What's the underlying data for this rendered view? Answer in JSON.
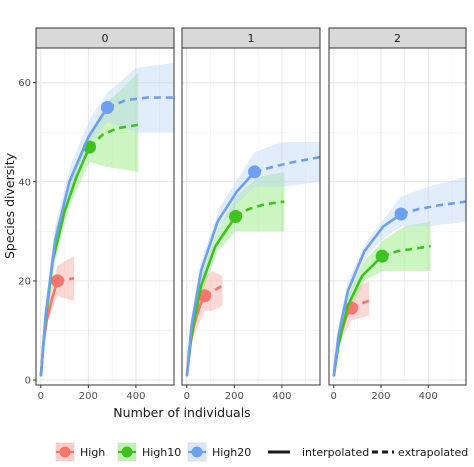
{
  "chart_data": {
    "type": "line",
    "facets": [
      "0",
      "1",
      "2"
    ],
    "xlabel": "Number of individuals",
    "ylabel": "Species diversity",
    "xlim": [
      -20,
      560
    ],
    "ylim": [
      -1,
      67
    ],
    "x_ticks": [
      0,
      200,
      400
    ],
    "y_ticks": [
      0,
      20,
      40,
      60
    ],
    "grid": true,
    "legend_position": "bottom",
    "line_types": {
      "interpolated": "interpolated",
      "extrapolated": "extrapolated"
    },
    "series": [
      {
        "name": "High",
        "color": "#f8766d",
        "band_color": "#f8a8a2"
      },
      {
        "name": "High10",
        "color": "#3ec31e",
        "band_color": "#8ee878"
      },
      {
        "name": "High20",
        "color": "#6f9ff0",
        "band_color": "#bcd8f7"
      }
    ],
    "panels": [
      {
        "facet": "0",
        "curves": [
          {
            "series": "High",
            "observed": [
              70,
              20
            ],
            "interpolated": [
              [
                1,
                1
              ],
              [
                10,
                7
              ],
              [
                25,
                12
              ],
              [
                45,
                16
              ],
              [
                70,
                20
              ]
            ],
            "extrapolated": [
              [
                70,
                20
              ],
              [
                100,
                20.3
              ],
              [
                140,
                20.5
              ]
            ],
            "band": [
              [
                10,
                6,
                8
              ],
              [
                30,
                12,
                16
              ],
              [
                70,
                17,
                23
              ],
              [
                100,
                16.5,
                24
              ],
              [
                140,
                16,
                25
              ]
            ]
          },
          {
            "series": "High10",
            "observed": [
              205,
              47
            ],
            "interpolated": [
              [
                1,
                1
              ],
              [
                20,
                12
              ],
              [
                50,
                24
              ],
              [
                100,
                34
              ],
              [
                150,
                41
              ],
              [
                205,
                47
              ]
            ],
            "extrapolated": [
              [
                205,
                47
              ],
              [
                260,
                49.5
              ],
              [
                320,
                50.8
              ],
              [
                410,
                51.5
              ]
            ],
            "band": [
              [
                20,
                10,
                14
              ],
              [
                60,
                24,
                30
              ],
              [
                120,
                35,
                40
              ],
              [
                205,
                44,
                50
              ],
              [
                280,
                43,
                56
              ],
              [
                410,
                42,
                62
              ]
            ]
          },
          {
            "series": "High20",
            "observed": [
              280,
              55
            ],
            "interpolated": [
              [
                1,
                1
              ],
              [
                20,
                13
              ],
              [
                60,
                28
              ],
              [
                120,
                40
              ],
              [
                200,
                49
              ],
              [
                280,
                55
              ]
            ],
            "extrapolated": [
              [
                280,
                55
              ],
              [
                360,
                56.5
              ],
              [
                450,
                57
              ],
              [
                560,
                57
              ]
            ],
            "band": [
              [
                20,
                11,
                15
              ],
              [
                60,
                26,
                31
              ],
              [
                130,
                39,
                44
              ],
              [
                210,
                48,
                53
              ],
              [
                280,
                52,
                58
              ],
              [
                400,
                50,
                63
              ],
              [
                560,
                50,
                64
              ]
            ]
          }
        ]
      },
      {
        "facet": "1",
        "curves": [
          {
            "series": "High",
            "observed": [
              75,
              17
            ],
            "interpolated": [
              [
                1,
                1
              ],
              [
                10,
                6
              ],
              [
                30,
                11
              ],
              [
                55,
                15
              ],
              [
                75,
                17
              ]
            ],
            "extrapolated": [
              [
                75,
                17
              ],
              [
                110,
                18
              ],
              [
                150,
                19
              ]
            ],
            "band": [
              [
                10,
                5,
                7
              ],
              [
                30,
                9,
                13
              ],
              [
                75,
                14,
                21
              ],
              [
                110,
                14,
                22
              ],
              [
                150,
                15,
                21
              ]
            ]
          },
          {
            "series": "High10",
            "observed": [
              205,
              33
            ],
            "interpolated": [
              [
                1,
                1
              ],
              [
                20,
                9
              ],
              [
                60,
                19
              ],
              [
                120,
                27
              ],
              [
                205,
                33
              ]
            ],
            "extrapolated": [
              [
                205,
                33
              ],
              [
                260,
                34.5
              ],
              [
                330,
                35.5
              ],
              [
                410,
                36
              ]
            ],
            "band": [
              [
                20,
                7,
                11
              ],
              [
                60,
                17,
                21
              ],
              [
                130,
                26,
                30
              ],
              [
                205,
                30,
                37
              ],
              [
                300,
                30,
                41
              ],
              [
                410,
                30,
                42
              ]
            ]
          },
          {
            "series": "High20",
            "observed": [
              285,
              42
            ],
            "interpolated": [
              [
                1,
                1
              ],
              [
                20,
                11
              ],
              [
                60,
                22
              ],
              [
                130,
                32
              ],
              [
                210,
                38
              ],
              [
                285,
                42
              ]
            ],
            "extrapolated": [
              [
                285,
                42
              ],
              [
                360,
                43
              ],
              [
                450,
                44
              ],
              [
                560,
                45
              ]
            ],
            "band": [
              [
                20,
                9,
                13
              ],
              [
                60,
                20,
                24
              ],
              [
                140,
                31,
                35
              ],
              [
                220,
                36,
                41
              ],
              [
                285,
                39,
                46
              ],
              [
                400,
                39,
                48
              ],
              [
                560,
                40,
                48
              ]
            ]
          }
        ]
      },
      {
        "facet": "2",
        "curves": [
          {
            "series": "High",
            "observed": [
              75,
              14.5
            ],
            "interpolated": [
              [
                1,
                1
              ],
              [
                10,
                5
              ],
              [
                30,
                9.5
              ],
              [
                55,
                13
              ],
              [
                75,
                14.5
              ]
            ],
            "extrapolated": [
              [
                75,
                14.5
              ],
              [
                110,
                15.3
              ],
              [
                150,
                16
              ]
            ],
            "band": [
              [
                10,
                4,
                6
              ],
              [
                30,
                8,
                11
              ],
              [
                75,
                12,
                17
              ],
              [
                110,
                12.5,
                19
              ],
              [
                150,
                13,
                20
              ]
            ]
          },
          {
            "series": "High10",
            "observed": [
              205,
              25
            ],
            "interpolated": [
              [
                1,
                1
              ],
              [
                20,
                7
              ],
              [
                60,
                15
              ],
              [
                120,
                21
              ],
              [
                205,
                25
              ]
            ],
            "extrapolated": [
              [
                205,
                25
              ],
              [
                270,
                26
              ],
              [
                340,
                26.5
              ],
              [
                410,
                27
              ]
            ],
            "band": [
              [
                20,
                6,
                8
              ],
              [
                60,
                13,
                17
              ],
              [
                130,
                20,
                24
              ],
              [
                205,
                22,
                28
              ],
              [
                300,
                22,
                31
              ],
              [
                410,
                22,
                32
              ]
            ]
          },
          {
            "series": "High20",
            "observed": [
              285,
              33.5
            ],
            "interpolated": [
              [
                1,
                1
              ],
              [
                20,
                9
              ],
              [
                60,
                18
              ],
              [
                130,
                26
              ],
              [
                210,
                31
              ],
              [
                285,
                33.5
              ]
            ],
            "extrapolated": [
              [
                285,
                33.5
              ],
              [
                360,
                34.5
              ],
              [
                450,
                35.3
              ],
              [
                560,
                36
              ]
            ],
            "band": [
              [
                20,
                7,
                11
              ],
              [
                60,
                16,
                20
              ],
              [
                140,
                25,
                28
              ],
              [
                220,
                29,
                33
              ],
              [
                285,
                31,
                37
              ],
              [
                400,
                31,
                39
              ],
              [
                560,
                32,
                41
              ]
            ]
          }
        ]
      }
    ]
  }
}
